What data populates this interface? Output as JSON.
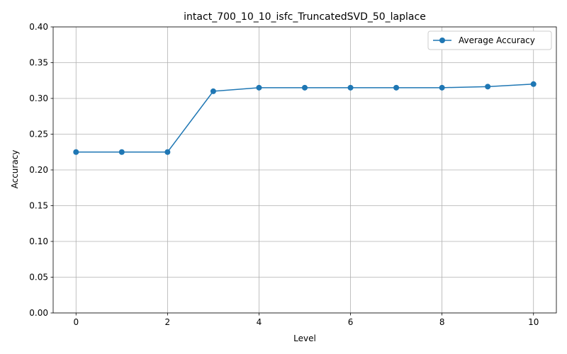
{
  "chart_data": {
    "type": "line",
    "title": "intact_700_10_10_isfc_TruncatedSVD_50_laplace",
    "xlabel": "Level",
    "ylabel": "Accuracy",
    "x": [
      0,
      1,
      2,
      3,
      4,
      5,
      6,
      7,
      8,
      9,
      10
    ],
    "series": [
      {
        "name": "Average Accuracy",
        "color": "#1f77b4",
        "marker": "circle",
        "values": [
          0.225,
          0.225,
          0.225,
          0.31,
          0.315,
          0.315,
          0.315,
          0.315,
          0.315,
          0.3165,
          0.32
        ]
      }
    ],
    "xlim": [
      -0.5,
      10.5
    ],
    "ylim": [
      0.0,
      0.4
    ],
    "xticks": [
      0,
      2,
      4,
      6,
      8,
      10
    ],
    "xtick_labels": [
      "0",
      "2",
      "4",
      "6",
      "8",
      "10"
    ],
    "yticks": [
      0.0,
      0.05,
      0.1,
      0.15,
      0.2,
      0.25,
      0.3,
      0.35,
      0.4
    ],
    "ytick_labels": [
      "0.00",
      "0.05",
      "0.10",
      "0.15",
      "0.20",
      "0.25",
      "0.30",
      "0.35",
      "0.40"
    ],
    "grid": true,
    "legend_position": "top-right"
  }
}
